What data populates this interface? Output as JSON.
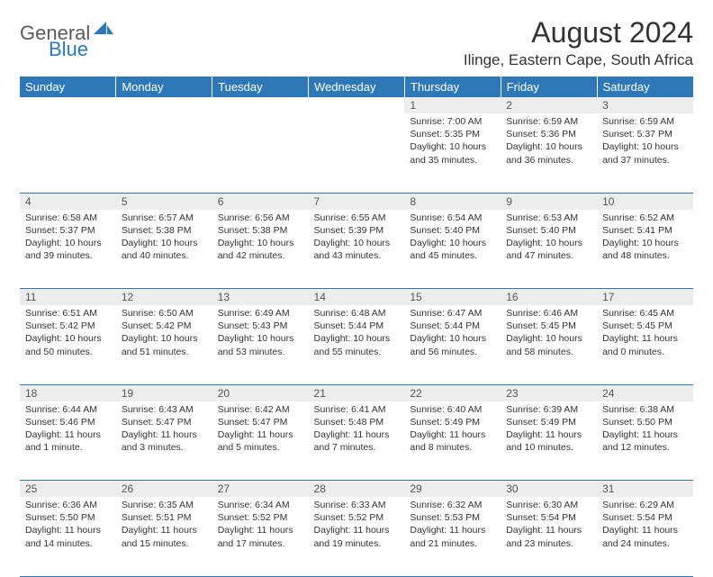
{
  "logo": {
    "text1": "General",
    "text2": "Blue"
  },
  "title": "August 2024",
  "location": "Ilinge, Eastern Cape, South Africa",
  "colors": {
    "header_bg": "#2e78b7",
    "header_text": "#ffffff",
    "daynum_bg": "#ededed",
    "border": "#2e78b7",
    "body_bg": "#ffffff",
    "text": "#333333"
  },
  "day_headers": [
    "Sunday",
    "Monday",
    "Tuesday",
    "Wednesday",
    "Thursday",
    "Friday",
    "Saturday"
  ],
  "weeks": [
    {
      "nums": [
        "",
        "",
        "",
        "",
        "1",
        "2",
        "3"
      ],
      "cells": [
        null,
        null,
        null,
        null,
        {
          "sunrise": "Sunrise: 7:00 AM",
          "sunset": "Sunset: 5:35 PM",
          "daylight": "Daylight: 10 hours and 35 minutes."
        },
        {
          "sunrise": "Sunrise: 6:59 AM",
          "sunset": "Sunset: 5:36 PM",
          "daylight": "Daylight: 10 hours and 36 minutes."
        },
        {
          "sunrise": "Sunrise: 6:59 AM",
          "sunset": "Sunset: 5:37 PM",
          "daylight": "Daylight: 10 hours and 37 minutes."
        }
      ]
    },
    {
      "nums": [
        "4",
        "5",
        "6",
        "7",
        "8",
        "9",
        "10"
      ],
      "cells": [
        {
          "sunrise": "Sunrise: 6:58 AM",
          "sunset": "Sunset: 5:37 PM",
          "daylight": "Daylight: 10 hours and 39 minutes."
        },
        {
          "sunrise": "Sunrise: 6:57 AM",
          "sunset": "Sunset: 5:38 PM",
          "daylight": "Daylight: 10 hours and 40 minutes."
        },
        {
          "sunrise": "Sunrise: 6:56 AM",
          "sunset": "Sunset: 5:38 PM",
          "daylight": "Daylight: 10 hours and 42 minutes."
        },
        {
          "sunrise": "Sunrise: 6:55 AM",
          "sunset": "Sunset: 5:39 PM",
          "daylight": "Daylight: 10 hours and 43 minutes."
        },
        {
          "sunrise": "Sunrise: 6:54 AM",
          "sunset": "Sunset: 5:40 PM",
          "daylight": "Daylight: 10 hours and 45 minutes."
        },
        {
          "sunrise": "Sunrise: 6:53 AM",
          "sunset": "Sunset: 5:40 PM",
          "daylight": "Daylight: 10 hours and 47 minutes."
        },
        {
          "sunrise": "Sunrise: 6:52 AM",
          "sunset": "Sunset: 5:41 PM",
          "daylight": "Daylight: 10 hours and 48 minutes."
        }
      ]
    },
    {
      "nums": [
        "11",
        "12",
        "13",
        "14",
        "15",
        "16",
        "17"
      ],
      "cells": [
        {
          "sunrise": "Sunrise: 6:51 AM",
          "sunset": "Sunset: 5:42 PM",
          "daylight": "Daylight: 10 hours and 50 minutes."
        },
        {
          "sunrise": "Sunrise: 6:50 AM",
          "sunset": "Sunset: 5:42 PM",
          "daylight": "Daylight: 10 hours and 51 minutes."
        },
        {
          "sunrise": "Sunrise: 6:49 AM",
          "sunset": "Sunset: 5:43 PM",
          "daylight": "Daylight: 10 hours and 53 minutes."
        },
        {
          "sunrise": "Sunrise: 6:48 AM",
          "sunset": "Sunset: 5:44 PM",
          "daylight": "Daylight: 10 hours and 55 minutes."
        },
        {
          "sunrise": "Sunrise: 6:47 AM",
          "sunset": "Sunset: 5:44 PM",
          "daylight": "Daylight: 10 hours and 56 minutes."
        },
        {
          "sunrise": "Sunrise: 6:46 AM",
          "sunset": "Sunset: 5:45 PM",
          "daylight": "Daylight: 10 hours and 58 minutes."
        },
        {
          "sunrise": "Sunrise: 6:45 AM",
          "sunset": "Sunset: 5:45 PM",
          "daylight": "Daylight: 11 hours and 0 minutes."
        }
      ]
    },
    {
      "nums": [
        "18",
        "19",
        "20",
        "21",
        "22",
        "23",
        "24"
      ],
      "cells": [
        {
          "sunrise": "Sunrise: 6:44 AM",
          "sunset": "Sunset: 5:46 PM",
          "daylight": "Daylight: 11 hours and 1 minute."
        },
        {
          "sunrise": "Sunrise: 6:43 AM",
          "sunset": "Sunset: 5:47 PM",
          "daylight": "Daylight: 11 hours and 3 minutes."
        },
        {
          "sunrise": "Sunrise: 6:42 AM",
          "sunset": "Sunset: 5:47 PM",
          "daylight": "Daylight: 11 hours and 5 minutes."
        },
        {
          "sunrise": "Sunrise: 6:41 AM",
          "sunset": "Sunset: 5:48 PM",
          "daylight": "Daylight: 11 hours and 7 minutes."
        },
        {
          "sunrise": "Sunrise: 6:40 AM",
          "sunset": "Sunset: 5:49 PM",
          "daylight": "Daylight: 11 hours and 8 minutes."
        },
        {
          "sunrise": "Sunrise: 6:39 AM",
          "sunset": "Sunset: 5:49 PM",
          "daylight": "Daylight: 11 hours and 10 minutes."
        },
        {
          "sunrise": "Sunrise: 6:38 AM",
          "sunset": "Sunset: 5:50 PM",
          "daylight": "Daylight: 11 hours and 12 minutes."
        }
      ]
    },
    {
      "nums": [
        "25",
        "26",
        "27",
        "28",
        "29",
        "30",
        "31"
      ],
      "cells": [
        {
          "sunrise": "Sunrise: 6:36 AM",
          "sunset": "Sunset: 5:50 PM",
          "daylight": "Daylight: 11 hours and 14 minutes."
        },
        {
          "sunrise": "Sunrise: 6:35 AM",
          "sunset": "Sunset: 5:51 PM",
          "daylight": "Daylight: 11 hours and 15 minutes."
        },
        {
          "sunrise": "Sunrise: 6:34 AM",
          "sunset": "Sunset: 5:52 PM",
          "daylight": "Daylight: 11 hours and 17 minutes."
        },
        {
          "sunrise": "Sunrise: 6:33 AM",
          "sunset": "Sunset: 5:52 PM",
          "daylight": "Daylight: 11 hours and 19 minutes."
        },
        {
          "sunrise": "Sunrise: 6:32 AM",
          "sunset": "Sunset: 5:53 PM",
          "daylight": "Daylight: 11 hours and 21 minutes."
        },
        {
          "sunrise": "Sunrise: 6:30 AM",
          "sunset": "Sunset: 5:54 PM",
          "daylight": "Daylight: 11 hours and 23 minutes."
        },
        {
          "sunrise": "Sunrise: 6:29 AM",
          "sunset": "Sunset: 5:54 PM",
          "daylight": "Daylight: 11 hours and 24 minutes."
        }
      ]
    }
  ]
}
